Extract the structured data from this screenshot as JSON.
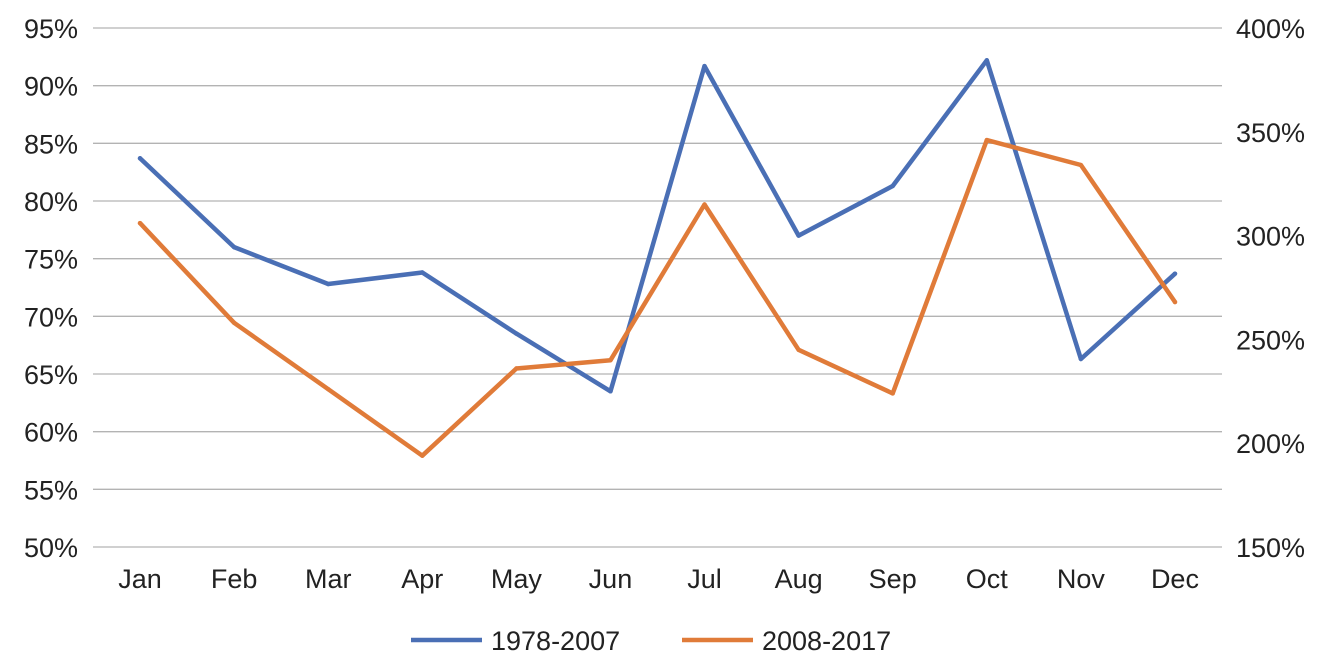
{
  "chart_data": {
    "type": "line",
    "categories": [
      "Jan",
      "Feb",
      "Mar",
      "Apr",
      "May",
      "Jun",
      "Jul",
      "Aug",
      "Sep",
      "Oct",
      "Nov",
      "Dec"
    ],
    "y_axis_left": {
      "ticks": [
        "95%",
        "90%",
        "85%",
        "80%",
        "75%",
        "70%",
        "65%",
        "60%",
        "55%",
        "50%"
      ],
      "ylim": [
        50,
        95
      ]
    },
    "y_axis_right": {
      "ticks": [
        "400%",
        "350%",
        "300%",
        "250%",
        "200%",
        "150%"
      ],
      "ylim": [
        150,
        400
      ]
    },
    "series": [
      {
        "name": "1978-2007",
        "axis": "left",
        "color": "#4A6FB5",
        "values": [
          83.7,
          76.0,
          72.8,
          73.8,
          68.5,
          63.5,
          91.7,
          77.0,
          81.3,
          92.2,
          66.3,
          73.7
        ]
      },
      {
        "name": "2008-2017",
        "axis": "right",
        "color": "#E07B39",
        "values": [
          306,
          258,
          226,
          194,
          236,
          240,
          315,
          245,
          224,
          346,
          334,
          268
        ]
      }
    ],
    "grid": true,
    "legend_position": "bottom"
  }
}
